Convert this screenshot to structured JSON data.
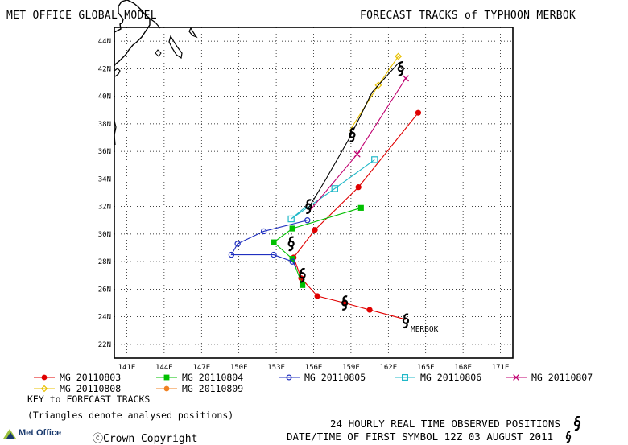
{
  "header": {
    "title_left": "MET OFFICE GLOBAL MODEL",
    "title_right": "FORECAST TRACKS of TYPHOON MERBOK"
  },
  "map": {
    "lon_ticks": [
      "141E",
      "144E",
      "147E",
      "150E",
      "153E",
      "156E",
      "159E",
      "162E",
      "165E",
      "168E",
      "171E"
    ],
    "lat_ticks": [
      "44N",
      "42N",
      "40N",
      "38N",
      "36N",
      "34N",
      "32N",
      "30N",
      "28N",
      "26N",
      "24N",
      "22N"
    ],
    "storm_label": "MERBOK",
    "colors": {
      "land": "#000000",
      "grid": "#000000"
    }
  },
  "legend": {
    "items": [
      {
        "label": "MG 20110803",
        "color": "#e00000",
        "marker": "circle-filled"
      },
      {
        "label": "MG 20110804",
        "color": "#00c000",
        "marker": "square-filled"
      },
      {
        "label": "MG 20110805",
        "color": "#2030c0",
        "marker": "circle-open"
      },
      {
        "label": "MG 20110806",
        "color": "#20b8c8",
        "marker": "square-open"
      },
      {
        "label": "MG 20110807",
        "color": "#c00070",
        "marker": "x"
      },
      {
        "label": "MG 20110808",
        "color": "#e8c000",
        "marker": "diamond-open"
      },
      {
        "label": "MG 20110809",
        "color": "#f08020",
        "marker": "circle-filled"
      }
    ],
    "key_title": "KEY to FORECAST TRACKS",
    "key_note": "(Triangles denote analysed positions)"
  },
  "footer": {
    "observed": "24 HOURLY REAL TIME OBSERVED POSITIONS",
    "first_symbol": "DATE/TIME OF FIRST SYMBOL 12Z 03 AUGUST 2011",
    "copyright": "Crown Copyright",
    "brand": "Met Office"
  },
  "tracks": [
    {
      "name": "MG 20110803",
      "color": "#e00000",
      "marker": "circle-filled",
      "points": [
        [
          163.4,
          23.8
        ],
        [
          160.5,
          24.5
        ],
        [
          158.5,
          25.0
        ],
        [
          156.3,
          25.5
        ],
        [
          155.0,
          26.8
        ],
        [
          154.4,
          28.3
        ],
        [
          156.1,
          30.3
        ],
        [
          159.6,
          33.4
        ],
        [
          164.4,
          38.8
        ]
      ]
    },
    {
      "name": "MG 20110804",
      "color": "#00c000",
      "marker": "square-filled",
      "points": [
        [
          155.1,
          26.3
        ],
        [
          154.3,
          28.2
        ],
        [
          152.8,
          29.4
        ],
        [
          154.3,
          30.4
        ],
        [
          159.8,
          31.9
        ]
      ]
    },
    {
      "name": "MG 20110805",
      "color": "#2030c0",
      "marker": "circle-open",
      "points": [
        [
          154.6,
          27.6
        ],
        [
          154.3,
          28.0
        ],
        [
          152.8,
          28.5
        ],
        [
          149.4,
          28.5
        ],
        [
          149.9,
          29.3
        ],
        [
          152.0,
          30.2
        ],
        [
          155.5,
          31.0
        ]
      ]
    },
    {
      "name": "MG 20110806",
      "color": "#20b8c8",
      "marker": "square-open",
      "points": [
        [
          155.4,
          32.0
        ],
        [
          154.2,
          31.1
        ],
        [
          157.7,
          33.3
        ],
        [
          160.9,
          35.4
        ]
      ]
    },
    {
      "name": "MG 20110807",
      "color": "#c00070",
      "marker": "x",
      "points": [
        [
          155.6,
          31.6
        ],
        [
          159.5,
          35.8
        ],
        [
          163.4,
          41.3
        ]
      ]
    },
    {
      "name": "MG 20110808",
      "color": "#e8c000",
      "marker": "diamond-open",
      "points": [
        [
          158.9,
          37.5
        ],
        [
          161.2,
          40.8
        ],
        [
          162.8,
          42.9
        ]
      ]
    },
    {
      "name": "MG 20110809",
      "color": "#f08020",
      "marker": "circle-filled",
      "points": []
    },
    {
      "name": "black",
      "color": "#000000",
      "marker": "none",
      "points": [
        [
          155.6,
          31.9
        ],
        [
          157.0,
          34.0
        ],
        [
          158.9,
          37.0
        ],
        [
          160.7,
          40.3
        ],
        [
          162.9,
          42.5
        ]
      ]
    }
  ],
  "observed_positions": [
    [
      163.4,
      23.7
    ],
    [
      158.5,
      25.0
    ],
    [
      155.1,
      27.0
    ],
    [
      154.2,
      29.3
    ],
    [
      155.6,
      32.0
    ],
    [
      159.1,
      37.2
    ],
    [
      163.0,
      42.0
    ]
  ]
}
